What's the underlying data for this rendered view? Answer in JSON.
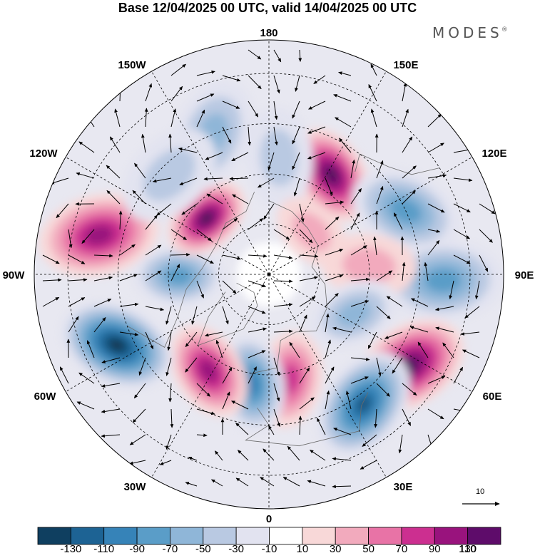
{
  "title": "Base 12/04/2025 00 UTC, valid 14/04/2025 00 UTC",
  "brand": "MODES",
  "brand_mark": "®",
  "longitude_labels": {
    "deg180": "180",
    "deg150E": "150E",
    "deg120E": "120E",
    "deg90E": "90E",
    "deg60E": "60E",
    "deg30E": "30E",
    "deg0": "0",
    "deg30W": "30W",
    "deg60W": "60W",
    "deg90W": "90W",
    "deg120W": "120W",
    "deg150W": "150W"
  },
  "reference_vector": {
    "label": "10"
  },
  "colorbar": {
    "labels": [
      "-130",
      "-110",
      "-90",
      "-70",
      "-50",
      "-30",
      "-10",
      "10",
      "30",
      "50",
      "70",
      "90",
      "110",
      "130"
    ],
    "colors": [
      "#0f3f60",
      "#1d6394",
      "#3683b8",
      "#5a9dc8",
      "#8fb6d8",
      "#b9c9e2",
      "#e2e3f0",
      "#ffffff",
      "#f8d8d8",
      "#f2aabd",
      "#e873a6",
      "#cc2f90",
      "#99137d",
      "#5e0c6a"
    ]
  },
  "anomalies": [
    {
      "lon": 148,
      "lat": 55,
      "value": 120
    },
    {
      "lon": 115,
      "lat": 45,
      "value": -70
    },
    {
      "lon": 88,
      "lat": 38,
      "value": -80
    },
    {
      "lon": 57,
      "lat": 40,
      "value": 115
    },
    {
      "lon": 36,
      "lat": 42,
      "value": -125
    },
    {
      "lon": 11,
      "lat": 58,
      "value": 75
    },
    {
      "lon": -9,
      "lat": 57,
      "value": -95
    },
    {
      "lon": -32,
      "lat": 56,
      "value": 95
    },
    {
      "lon": -65,
      "lat": 40,
      "value": -130
    },
    {
      "lon": -103,
      "lat": 38,
      "value": 105
    },
    {
      "lon": -89,
      "lat": 63,
      "value": -80
    },
    {
      "lon": -132,
      "lat": 65,
      "value": 110
    },
    {
      "lon": -158,
      "lat": 45,
      "value": -55
    },
    {
      "lon": 175,
      "lat": 55,
      "value": -45
    },
    {
      "lon": 95,
      "lat": 60,
      "value": 45
    },
    {
      "lon": 65,
      "lat": 62,
      "value": -60
    },
    {
      "lon": -135,
      "lat": 48,
      "value": -40
    },
    {
      "lon": 135,
      "lat": 72,
      "value": 30
    }
  ]
}
